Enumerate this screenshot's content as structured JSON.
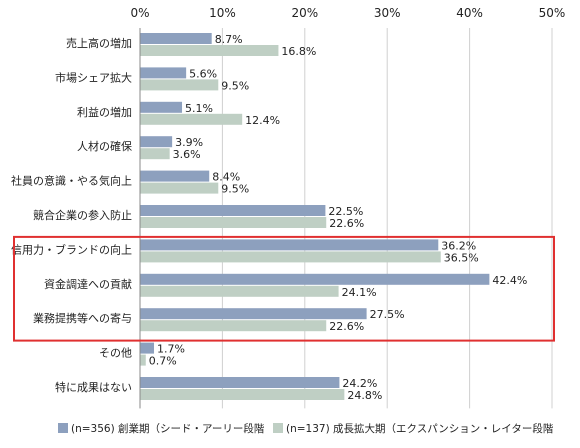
{
  "chart_data": {
    "type": "bar",
    "orientation": "horizontal",
    "xlim": [
      0,
      50
    ],
    "x_ticks": [
      0,
      10,
      20,
      30,
      40,
      50
    ],
    "x_tick_labels": [
      "0%",
      "10%",
      "20%",
      "30%",
      "40%",
      "50%"
    ],
    "grid": true,
    "legend_position": "bottom",
    "categories": [
      "売上高の増加",
      "市場シェア拡大",
      "利益の増加",
      "人材の確保",
      "社員の意識・やる気向上",
      "競合企業の参入防止",
      "信用力・ブランドの向上",
      "資金調達への貢献",
      "業務提携等への寄与",
      "その他",
      "特に成果はない"
    ],
    "series": [
      {
        "name": "(n=356) 創業期（シード・アーリー段階",
        "color": "#8da0be",
        "values": [
          8.7,
          5.6,
          5.1,
          3.9,
          8.4,
          22.5,
          36.2,
          42.4,
          27.5,
          1.7,
          24.2
        ],
        "labels": [
          "8.7%",
          "5.6%",
          "5.1%",
          "3.9%",
          "8.4%",
          "22.5%",
          "36.2%",
          "42.4%",
          "27.5%",
          "1.7%",
          "24.2%"
        ]
      },
      {
        "name": "(n=137) 成長拡大期（エクスパンション・レイター段階",
        "color": "#bfcfc4",
        "values": [
          16.8,
          9.5,
          12.4,
          3.6,
          9.5,
          22.6,
          36.5,
          24.1,
          22.6,
          0.7,
          24.8
        ],
        "labels": [
          "16.8%",
          "9.5%",
          "12.4%",
          "3.6%",
          "9.5%",
          "22.6%",
          "36.5%",
          "24.1%",
          "22.6%",
          "0.7%",
          "24.8%"
        ]
      }
    ],
    "highlight": {
      "categories": [
        "信用力・ブランドの向上",
        "資金調達への貢献",
        "業務提携等への寄与"
      ],
      "color": "#e03030"
    }
  }
}
